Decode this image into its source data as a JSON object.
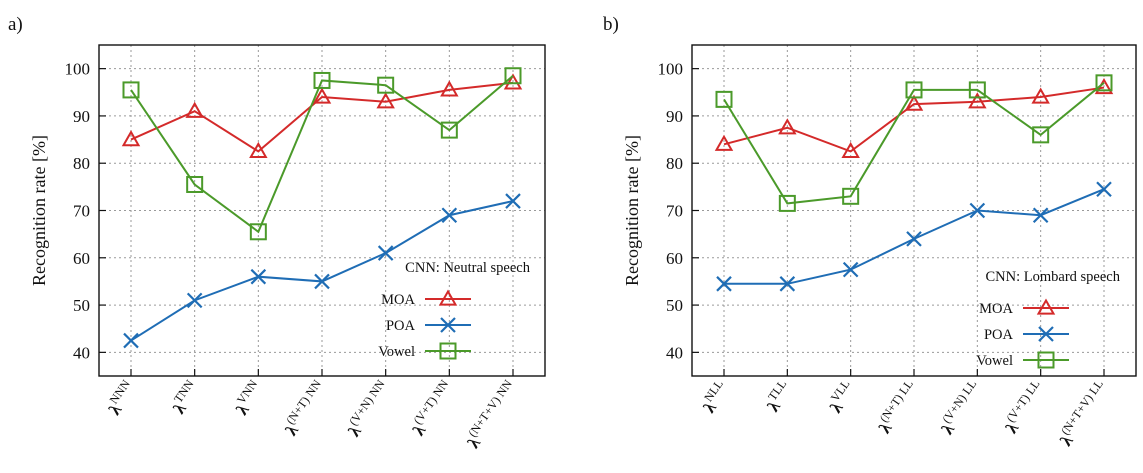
{
  "chart_data": [
    {
      "panel_label": "a)",
      "type": "line",
      "categories": [
        {
          "base": "λ",
          "sup": "NNN"
        },
        {
          "base": "λ",
          "sup": "TNN"
        },
        {
          "base": "λ",
          "sup": "VNN"
        },
        {
          "base": "λ",
          "sup": "(N+T) NN"
        },
        {
          "base": "λ",
          "sup": "(V+N) NN"
        },
        {
          "base": "λ",
          "sup": "(V+T) NN"
        },
        {
          "base": "λ",
          "sup": "(N+T+V) NN"
        }
      ],
      "ylabel": "Recognition rate [%]",
      "ylim": [
        35,
        105
      ],
      "yticks": [
        40,
        50,
        60,
        70,
        80,
        90,
        100
      ],
      "grid": true,
      "annotation": "CNN: Neutral speech",
      "legend_position": "lower-right",
      "series": [
        {
          "name": "MOA",
          "color": "#d42a2a",
          "marker": "triangle",
          "values": [
            85,
            91,
            82.5,
            94,
            93,
            95.5,
            97
          ]
        },
        {
          "name": "POA",
          "color": "#1f6db5",
          "marker": "x",
          "values": [
            42.5,
            51,
            56,
            55,
            61,
            69,
            72
          ]
        },
        {
          "name": "Vowel",
          "color": "#4b9a2a",
          "marker": "square",
          "values": [
            95.5,
            75.5,
            65.5,
            97.5,
            96.5,
            87,
            98.5
          ]
        }
      ]
    },
    {
      "panel_label": "b)",
      "type": "line",
      "categories": [
        {
          "base": "λ",
          "sup": "NLL"
        },
        {
          "base": "λ",
          "sup": "TLL"
        },
        {
          "base": "λ",
          "sup": "VLL"
        },
        {
          "base": "λ",
          "sup": "(N+T) LL"
        },
        {
          "base": "λ",
          "sup": "(V+N) LL"
        },
        {
          "base": "λ",
          "sup": "(V+T) LL"
        },
        {
          "base": "λ",
          "sup": "(N+T+V) LL"
        }
      ],
      "ylabel": "Recognition rate [%]",
      "ylim": [
        35,
        105
      ],
      "yticks": [
        40,
        50,
        60,
        70,
        80,
        90,
        100
      ],
      "grid": true,
      "annotation": "CNN: Lombard speech",
      "legend_position": "lower-right",
      "series": [
        {
          "name": "MOA",
          "color": "#d42a2a",
          "marker": "triangle",
          "values": [
            84,
            87.5,
            82.5,
            92.5,
            93,
            94,
            96
          ]
        },
        {
          "name": "POA",
          "color": "#1f6db5",
          "marker": "x",
          "values": [
            54.5,
            54.5,
            57.5,
            64,
            70,
            69,
            74.5
          ]
        },
        {
          "name": "Vowel",
          "color": "#4b9a2a",
          "marker": "square",
          "values": [
            93.5,
            71.5,
            73,
            95.5,
            95.5,
            86,
            97
          ]
        }
      ]
    }
  ]
}
